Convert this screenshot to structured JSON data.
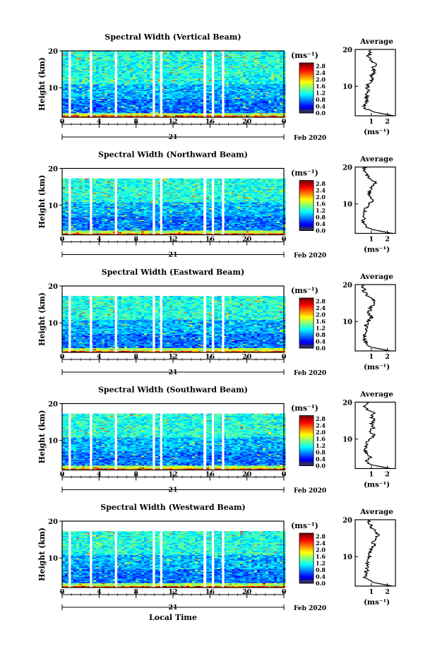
{
  "chart_data": [
    {
      "type": "heatmap",
      "title": "Spectral Width (Vertical Beam)",
      "ylabel": "Height (km)",
      "ylim": [
        2,
        20
      ],
      "yticks": [
        "10",
        "20"
      ],
      "xlim": [
        0,
        24
      ],
      "xticks": [
        "0",
        "4",
        "8",
        "12",
        "16",
        "20",
        "0"
      ],
      "date_day": "21",
      "date_month_year": "Feb 2020",
      "data_gaps_local_time": [
        [
          0.7,
          0.95
        ],
        [
          3.0,
          3.25
        ],
        [
          5.7,
          5.95
        ],
        [
          9.8,
          10.05
        ],
        [
          10.6,
          10.85
        ],
        [
          15.3,
          15.6
        ],
        [
          16.2,
          16.45
        ],
        [
          17.3,
          17.55
        ]
      ],
      "colorbar": {
        "label": "(ms⁻¹)",
        "ticks": [
          "0.0",
          "0.4",
          "0.8",
          "1.2",
          "1.6",
          "2.0",
          "2.4",
          "2.8"
        ],
        "range": [
          0,
          3.0
        ]
      },
      "average_profile": {
        "title": "Average",
        "xlabel": "(ms⁻¹)",
        "xticks": [
          "1",
          "2"
        ],
        "yticks": [
          "10",
          "20"
        ],
        "xlim": [
          0,
          2.5
        ],
        "height_km": [
          2,
          3,
          4,
          5,
          6,
          7,
          8,
          9,
          10,
          11,
          12,
          13,
          14,
          15,
          16,
          17,
          18,
          19,
          20
        ],
        "width_ms": [
          2.4,
          1.2,
          0.6,
          0.55,
          0.75,
          0.7,
          0.75,
          0.8,
          0.75,
          0.9,
          1.1,
          1.0,
          1.25,
          1.05,
          1.3,
          1.0,
          0.8,
          0.9,
          0.95
        ]
      }
    },
    {
      "type": "heatmap",
      "title": "Spectral Width (Northward Beam)",
      "ylabel": "Height (km)",
      "ylim": [
        2,
        20
      ],
      "yticks": [
        "10",
        "20"
      ],
      "xlim": [
        0,
        24
      ],
      "xticks": [
        "0",
        "4",
        "8",
        "12",
        "16",
        "20",
        "0"
      ],
      "date_day": "21",
      "date_month_year": "Feb 2020",
      "data_gaps_local_time": [
        [
          0.7,
          0.95
        ],
        [
          3.0,
          3.25
        ],
        [
          5.7,
          5.95
        ],
        [
          9.8,
          10.05
        ],
        [
          10.6,
          10.85
        ],
        [
          15.3,
          15.6
        ],
        [
          16.2,
          16.45
        ],
        [
          17.3,
          17.55
        ]
      ],
      "colorbar": {
        "label": "(ms⁻¹)",
        "ticks": [
          "0.0",
          "0.4",
          "0.8",
          "1.2",
          "1.6",
          "2.0",
          "2.4",
          "2.8"
        ],
        "range": [
          0,
          3.0
        ]
      },
      "average_profile": {
        "title": "Average",
        "xlabel": "(ms⁻¹)",
        "xticks": [
          "1",
          "2"
        ],
        "yticks": [
          "10",
          "20"
        ],
        "xlim": [
          0,
          2.5
        ],
        "height_km": [
          2,
          3,
          4,
          5,
          6,
          7,
          8,
          9,
          10,
          11,
          12,
          13,
          14,
          15,
          16,
          17,
          18,
          19,
          20
        ],
        "width_ms": [
          2.3,
          1.1,
          0.6,
          0.5,
          0.55,
          0.55,
          0.6,
          0.7,
          0.8,
          1.15,
          0.8,
          0.9,
          1.0,
          1.15,
          1.25,
          0.9,
          0.7,
          0.6,
          0.5
        ]
      }
    },
    {
      "type": "heatmap",
      "title": "Spectral Width (Eastward Beam)",
      "ylabel": "Height (km)",
      "ylim": [
        2,
        20
      ],
      "yticks": [
        "10",
        "20"
      ],
      "xlim": [
        0,
        24
      ],
      "xticks": [
        "0",
        "4",
        "8",
        "12",
        "16",
        "20",
        "0"
      ],
      "date_day": "21",
      "date_month_year": "Feb 2020",
      "data_gaps_local_time": [
        [
          0.7,
          0.95
        ],
        [
          3.0,
          3.25
        ],
        [
          5.7,
          5.95
        ],
        [
          9.8,
          10.05
        ],
        [
          10.6,
          10.85
        ],
        [
          15.3,
          15.6
        ],
        [
          16.2,
          16.45
        ],
        [
          17.3,
          17.55
        ]
      ],
      "colorbar": {
        "label": "(ms⁻¹)",
        "ticks": [
          "0.0",
          "0.4",
          "0.8",
          "1.2",
          "1.6",
          "2.0",
          "2.4",
          "2.8"
        ],
        "range": [
          0,
          3.0
        ]
      },
      "average_profile": {
        "title": "Average",
        "xlabel": "(ms⁻¹)",
        "xticks": [
          "1",
          "2"
        ],
        "yticks": [
          "10",
          "20"
        ],
        "xlim": [
          0,
          2.5
        ],
        "height_km": [
          2,
          3,
          4,
          5,
          6,
          7,
          8,
          9,
          10,
          11,
          12,
          13,
          14,
          15,
          16,
          17,
          18,
          19,
          20
        ],
        "width_ms": [
          2.2,
          1.0,
          0.65,
          0.6,
          0.6,
          0.6,
          0.65,
          0.7,
          0.8,
          1.0,
          0.85,
          0.9,
          1.0,
          1.2,
          1.1,
          0.8,
          0.6,
          0.5,
          0.55
        ]
      }
    },
    {
      "type": "heatmap",
      "title": "Spectral Width (Southward Beam)",
      "ylabel": "Height (km)",
      "ylim": [
        2,
        20
      ],
      "yticks": [
        "10",
        "20"
      ],
      "xlim": [
        0,
        24
      ],
      "xticks": [
        "0",
        "4",
        "8",
        "12",
        "16",
        "20",
        "0"
      ],
      "date_day": "21",
      "date_month_year": "Feb 2020",
      "data_gaps_local_time": [
        [
          0.7,
          0.95
        ],
        [
          3.0,
          3.25
        ],
        [
          5.7,
          5.95
        ],
        [
          9.8,
          10.05
        ],
        [
          10.6,
          10.85
        ],
        [
          15.3,
          15.6
        ],
        [
          16.2,
          16.45
        ],
        [
          17.3,
          17.55
        ]
      ],
      "colorbar": {
        "label": "(ms⁻¹)",
        "ticks": [
          "0.0",
          "0.4",
          "0.8",
          "1.2",
          "1.6",
          "2.0",
          "2.4",
          "2.8"
        ],
        "range": [
          0,
          3.0
        ]
      },
      "average_profile": {
        "title": "Average",
        "xlabel": "(ms⁻¹)",
        "xticks": [
          "1",
          "2"
        ],
        "yticks": [
          "10",
          "20"
        ],
        "xlim": [
          0,
          2.5
        ],
        "height_km": [
          2,
          3,
          4,
          5,
          6,
          7,
          8,
          9,
          10,
          11,
          12,
          13,
          14,
          15,
          16,
          17,
          18,
          19,
          20
        ],
        "width_ms": [
          2.2,
          1.0,
          0.7,
          0.95,
          0.65,
          0.6,
          0.7,
          0.75,
          0.9,
          1.2,
          0.9,
          1.1,
          1.0,
          1.2,
          1.0,
          1.15,
          0.75,
          0.6,
          0.7
        ]
      }
    },
    {
      "type": "heatmap",
      "title": "Spectral Width (Westward Beam)",
      "ylabel": "Height (km)",
      "ylim": [
        2,
        20
      ],
      "yticks": [
        "10",
        "20"
      ],
      "xlim": [
        0,
        24
      ],
      "xticks": [
        "0",
        "4",
        "8",
        "12",
        "16",
        "20",
        "0"
      ],
      "date_day": "21",
      "date_month_year": "Feb 2020",
      "xlabel": "Local Time",
      "data_gaps_local_time": [
        [
          0.7,
          0.95
        ],
        [
          3.0,
          3.25
        ],
        [
          5.7,
          5.95
        ],
        [
          9.8,
          10.05
        ],
        [
          10.6,
          10.85
        ],
        [
          15.3,
          15.6
        ],
        [
          16.2,
          16.45
        ],
        [
          17.3,
          17.55
        ]
      ],
      "colorbar": {
        "label": "(ms⁻¹)",
        "ticks": [
          "0.0",
          "0.4",
          "0.8",
          "1.2",
          "1.6",
          "2.0",
          "2.4",
          "2.8"
        ],
        "range": [
          0,
          3.0
        ]
      },
      "average_profile": {
        "title": "Average",
        "xlabel": "(ms⁻¹)",
        "xticks": [
          "1",
          "2"
        ],
        "yticks": [
          "10",
          "20"
        ],
        "xlim": [
          0,
          2.5
        ],
        "height_km": [
          2,
          3,
          4,
          5,
          6,
          7,
          8,
          9,
          10,
          11,
          12,
          13,
          14,
          15,
          16,
          17,
          18,
          19,
          20
        ],
        "width_ms": [
          2.3,
          1.1,
          0.65,
          0.6,
          0.7,
          0.75,
          0.7,
          0.8,
          0.9,
          0.95,
          1.0,
          1.15,
          1.1,
          1.3,
          1.4,
          1.2,
          1.0,
          0.9,
          0.8
        ]
      }
    }
  ]
}
